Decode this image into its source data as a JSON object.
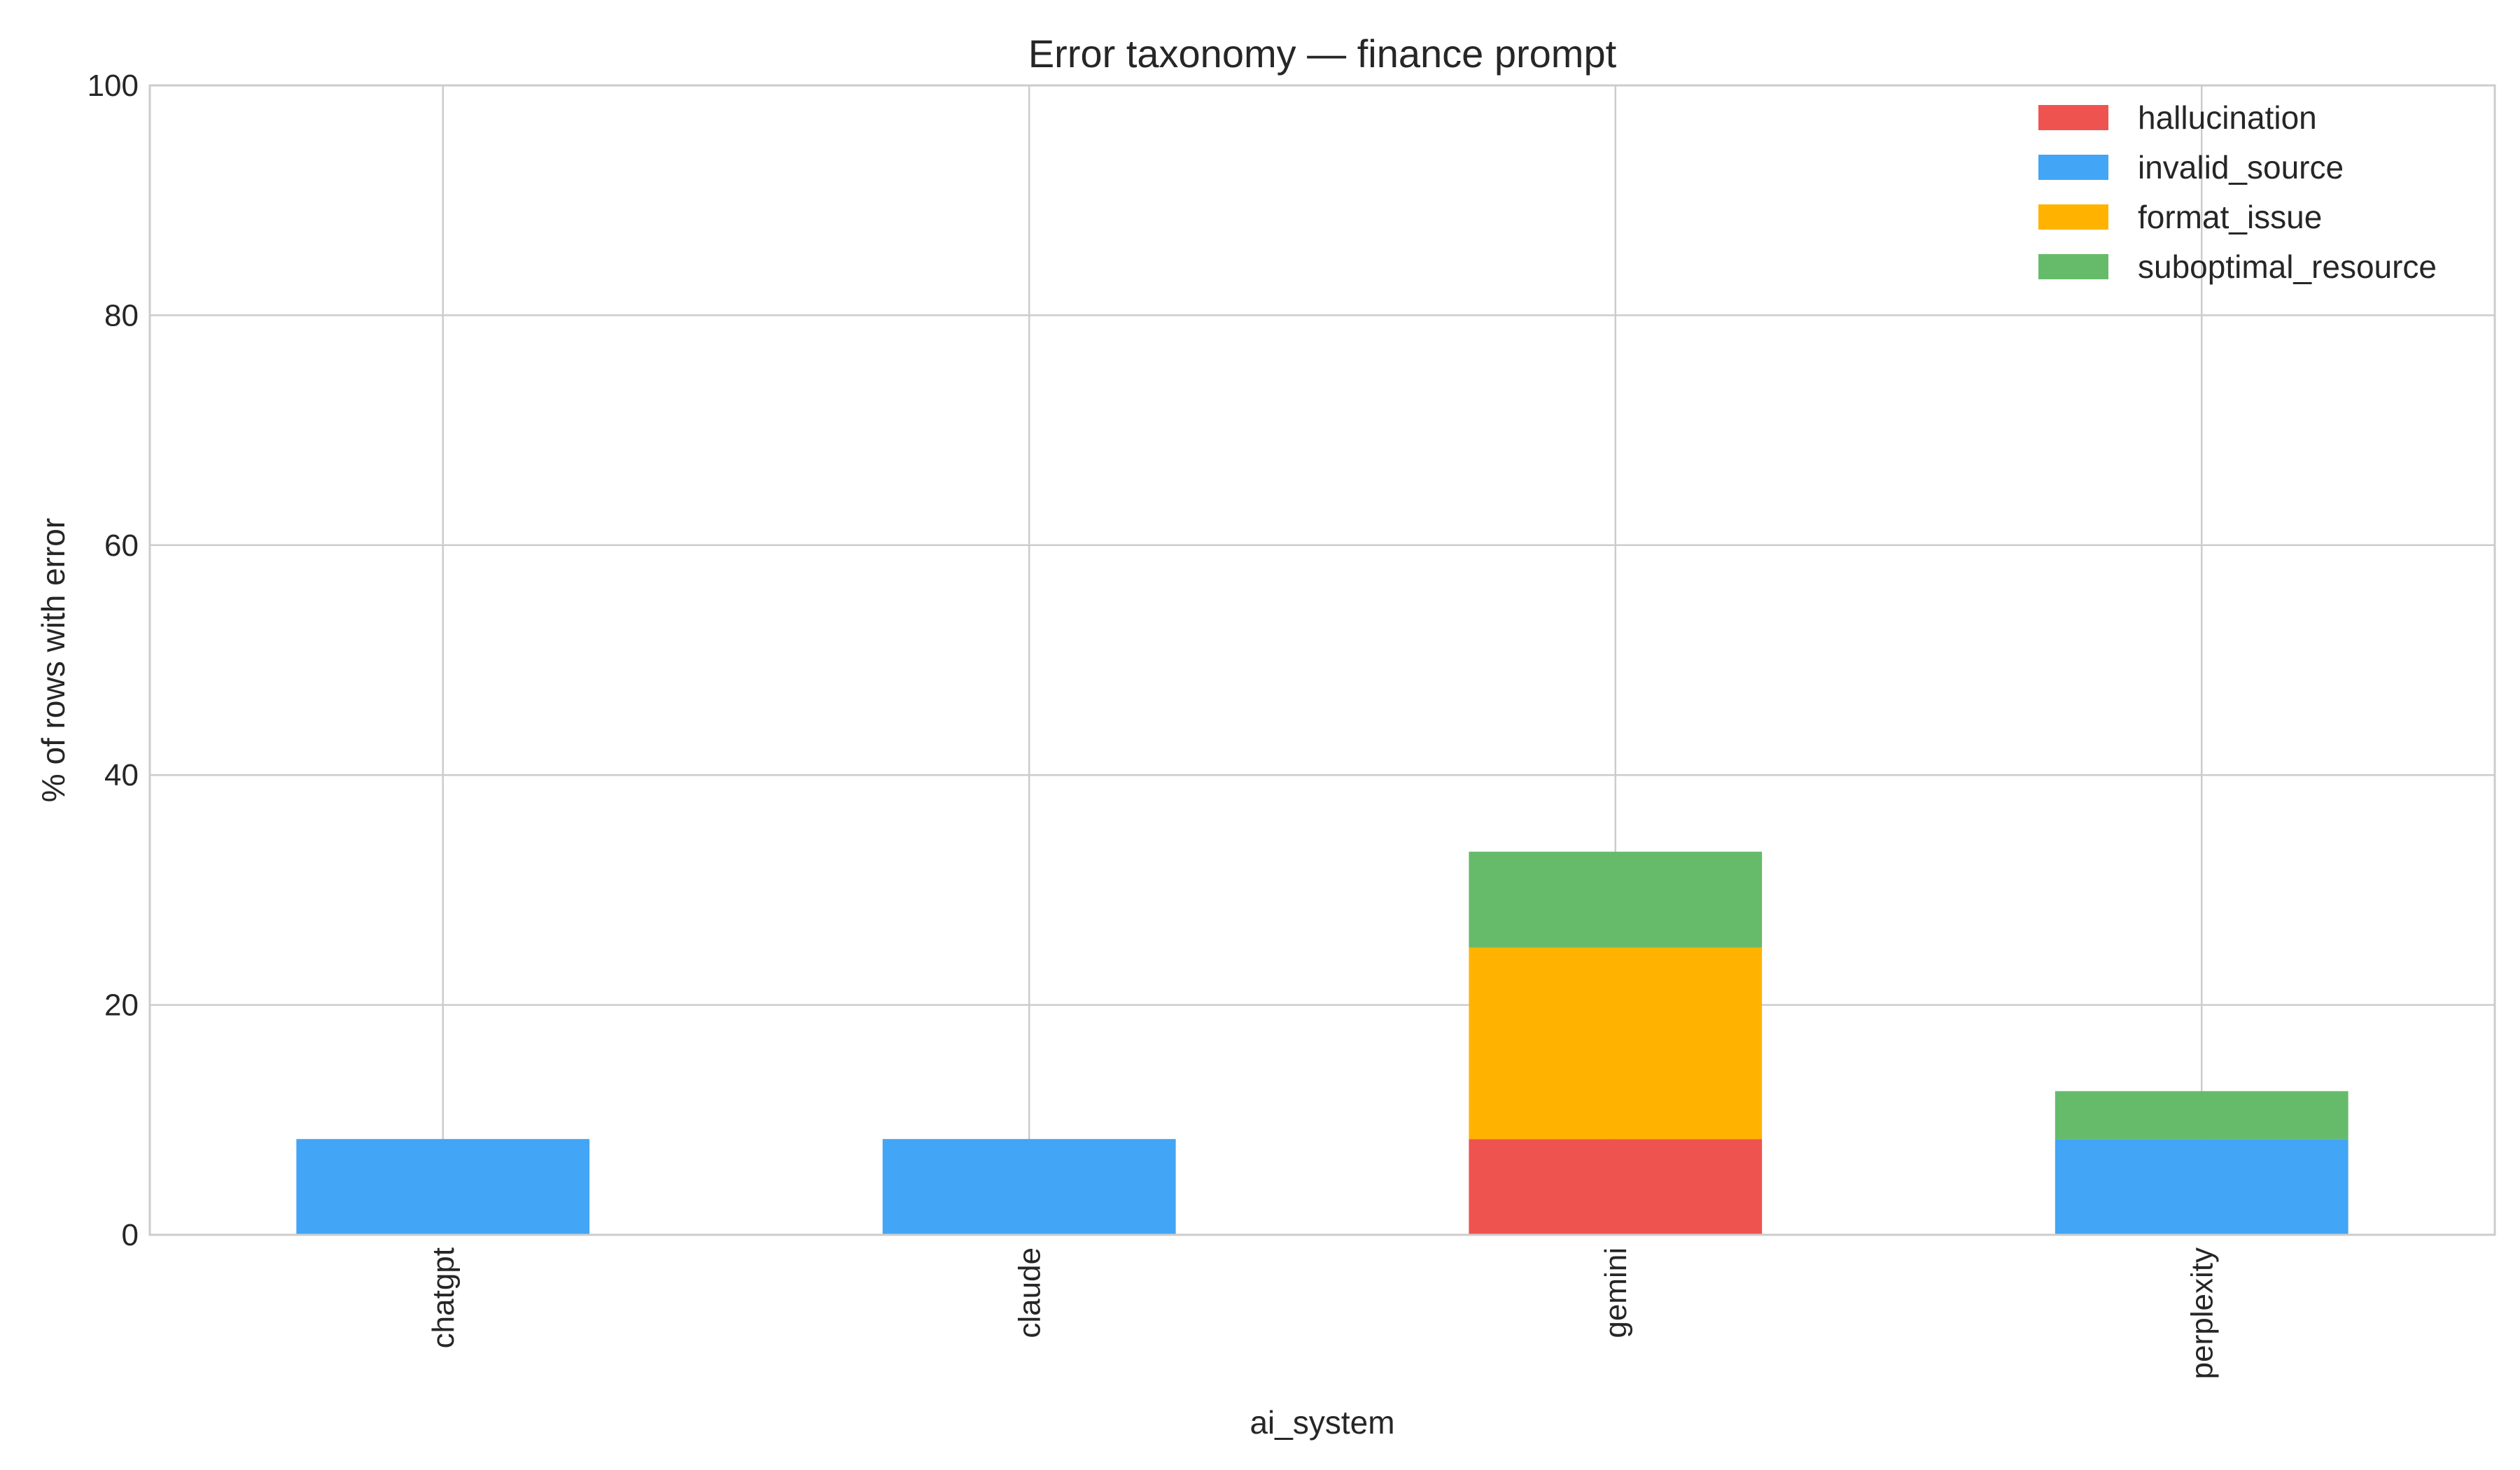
{
  "chart_data": {
    "type": "bar",
    "stacked": true,
    "title": "Error taxonomy — finance prompt",
    "xlabel": "ai_system",
    "ylabel": "% of rows with error",
    "ylim": [
      0,
      100
    ],
    "yticks": [
      0,
      20,
      40,
      60,
      80,
      100
    ],
    "categories": [
      "chatgpt",
      "claude",
      "gemini",
      "perplexity"
    ],
    "series": [
      {
        "name": "hallucination",
        "color": "#ef5350",
        "values": [
          0,
          0,
          8.33,
          0
        ]
      },
      {
        "name": "invalid_source",
        "color": "#42a5f5",
        "values": [
          8.33,
          8.33,
          0,
          8.33
        ]
      },
      {
        "name": "format_issue",
        "color": "#ffb300",
        "values": [
          0,
          0,
          16.67,
          0
        ]
      },
      {
        "name": "suboptimal_resource",
        "color": "#66bb6a",
        "values": [
          0,
          0,
          8.33,
          4.17
        ]
      }
    ],
    "grid": true,
    "legend_position": "top-right"
  }
}
